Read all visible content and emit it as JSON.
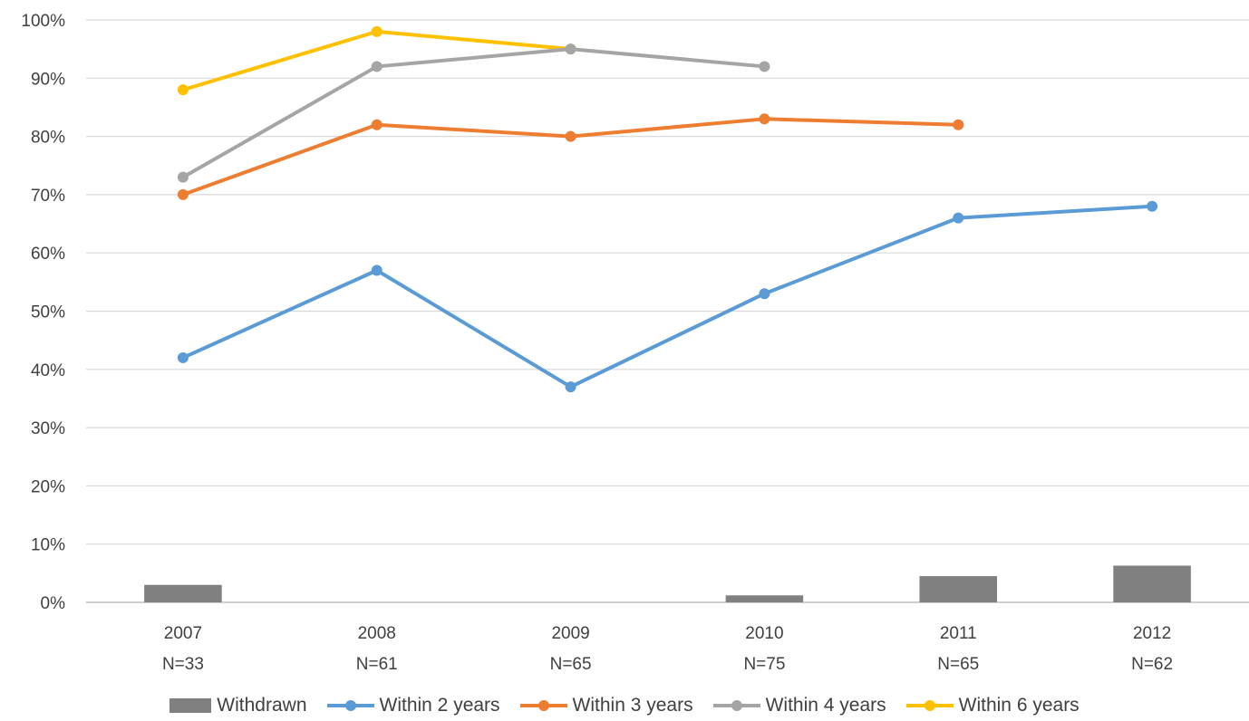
{
  "chart_data": {
    "type": "line",
    "title": "",
    "xlabel": "",
    "ylabel": "",
    "categories": [
      "2007",
      "2008",
      "2009",
      "2010",
      "2011",
      "2012"
    ],
    "category_sublabels": [
      "N=33",
      "N=61",
      "N=65",
      "N=75",
      "N=65",
      "N=62"
    ],
    "y_tick_labels": [
      "0%",
      "10%",
      "20%",
      "30%",
      "40%",
      "50%",
      "60%",
      "70%",
      "80%",
      "90%",
      "100%"
    ],
    "ylim": [
      0,
      100
    ],
    "grid": true,
    "legend_position": "bottom",
    "bar_series": {
      "name": "Withdrawn",
      "color": "#808080",
      "values": [
        3,
        0,
        0,
        1.2,
        4.5,
        6.3
      ]
    },
    "series": [
      {
        "name": "Within 2 years",
        "color": "#5B9BD5",
        "values": [
          42,
          57,
          37,
          53,
          66,
          68
        ]
      },
      {
        "name": "Within 3 years",
        "color": "#ED7D31",
        "values": [
          70,
          82,
          80,
          83,
          82,
          null
        ]
      },
      {
        "name": "Within 4 years",
        "color": "#A5A5A5",
        "values": [
          73,
          92,
          95,
          92,
          null,
          null
        ]
      },
      {
        "name": "Within 6 years",
        "color": "#FFC000",
        "values": [
          88,
          98,
          95,
          null,
          null,
          null
        ]
      }
    ]
  }
}
